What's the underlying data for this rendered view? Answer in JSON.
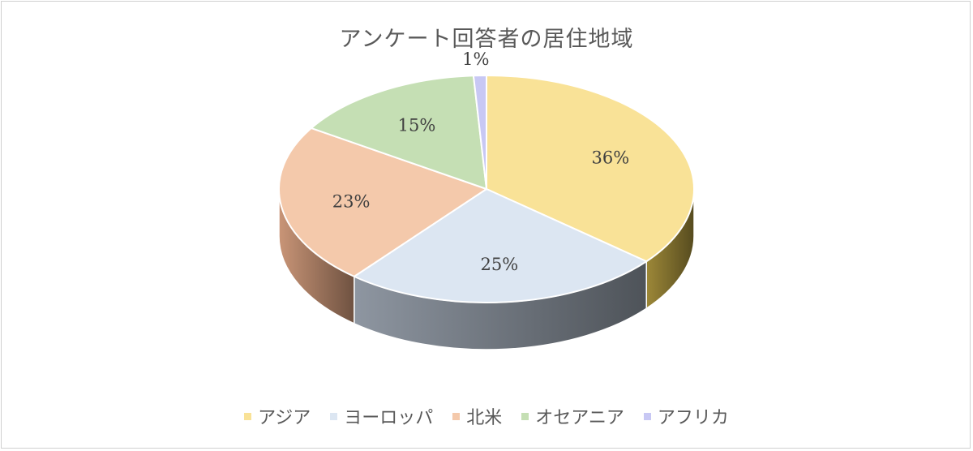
{
  "chart_data": {
    "type": "pie",
    "style": "3d",
    "title": "アンケート回答者の居住地域",
    "categories": [
      "アジア",
      "ヨーロッパ",
      "北米",
      "オセアニア",
      "アフリカ"
    ],
    "values": [
      36,
      25,
      23,
      15,
      1
    ],
    "labels": [
      "36%",
      "25%",
      "23%",
      "15%",
      "1%"
    ],
    "colors": [
      "#f9e297",
      "#dce6f2",
      "#f4c9ab",
      "#c5dfb4",
      "#c8c8f4"
    ],
    "side_colors": [
      "#9d8838",
      "#8e96a1",
      "#c99577",
      "#8fae7d",
      "#8b8bc4"
    ],
    "legend_position": "bottom"
  }
}
